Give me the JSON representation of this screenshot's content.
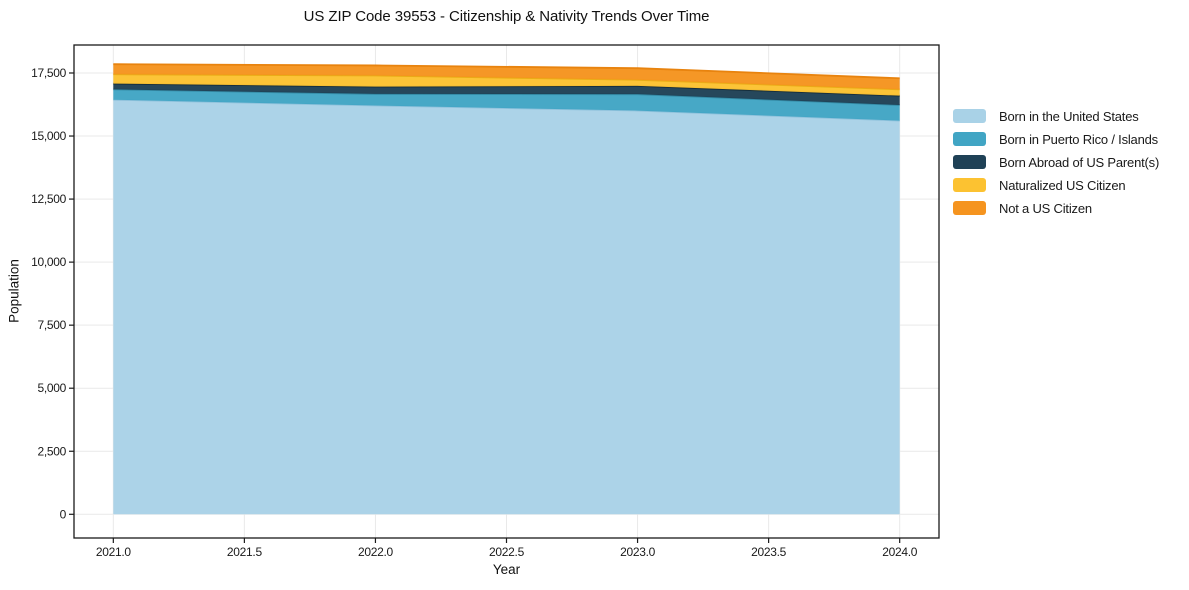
{
  "title": "US ZIP Code 39553 - Citizenship & Nativity Trends Over Time",
  "chart_data": {
    "type": "area",
    "stacked": true,
    "title": "US ZIP Code 39553 - Citizenship & Nativity Trends Over Time",
    "xlabel": "Year",
    "ylabel": "Population",
    "x": [
      2021,
      2022,
      2023,
      2024
    ],
    "series": [
      {
        "name": "Born in the United States",
        "color": "#a9d2e7",
        "edge": "#8fc2dc",
        "values": [
          16440,
          16210,
          16010,
          15610
        ]
      },
      {
        "name": "Born in Puerto Rico / Islands",
        "color": "#41a5c4",
        "edge": "#358ba6",
        "values": [
          410,
          460,
          650,
          620
        ]
      },
      {
        "name": "Born Abroad of US Parent(s)",
        "color": "#1f4156",
        "edge": "#152d3b",
        "values": [
          230,
          290,
          330,
          370
        ]
      },
      {
        "name": "Naturalized US Citizen",
        "color": "#fcc231",
        "edge": "#e9ad17",
        "values": [
          370,
          440,
          240,
          250
        ]
      },
      {
        "name": "Not a US Citizen",
        "color": "#f5941f",
        "edge": "#e8830e",
        "values": [
          400,
          400,
          460,
          440
        ]
      }
    ],
    "xlim": [
      2020.85,
      2024.15
    ],
    "ylim": [
      -940,
      18610
    ],
    "x_ticks": [
      2021.0,
      2021.5,
      2022.0,
      2022.5,
      2023.0,
      2023.5,
      2024.0
    ],
    "x_tick_labels": [
      "2021.0",
      "2021.5",
      "2022.0",
      "2022.5",
      "2023.0",
      "2023.5",
      "2024.0"
    ],
    "y_ticks": [
      0,
      2500,
      5000,
      7500,
      10000,
      12500,
      15000,
      17500
    ],
    "y_tick_labels": [
      "0",
      "2,500",
      "5,000",
      "7,500",
      "10,000",
      "12,500",
      "15,000",
      "17,500"
    ],
    "grid": true,
    "grid_color": "#e9e9e9",
    "axis_color": "#1a1a1a",
    "legend_position": "outside-right"
  }
}
